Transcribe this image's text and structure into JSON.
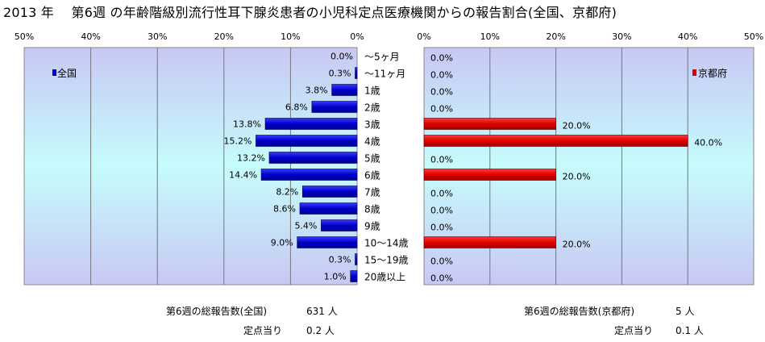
{
  "title": "2013 年　 第6週 の年齢階級別流行性耳下腺炎患者の小児科定点医療機関からの報告割合(全国、京都府)",
  "chart_data": [
    {
      "type": "bar",
      "orientation": "horizontal",
      "direction": "right-to-left",
      "series_name": "全国",
      "categories": [
        "～5ヶ月",
        "～11ヶ月",
        "1歳",
        "2歳",
        "3歳",
        "4歳",
        "5歳",
        "6歳",
        "7歳",
        "8歳",
        "9歳",
        "10～14歳",
        "15～19歳",
        "20歳以上"
      ],
      "values": [
        0.0,
        0.3,
        3.8,
        6.8,
        13.8,
        15.2,
        13.2,
        14.4,
        8.2,
        8.6,
        5.4,
        9.0,
        0.3,
        1.0
      ],
      "value_labels": [
        "0.0%",
        "0.3%",
        "3.8%",
        "6.8%",
        "13.8%",
        "15.2%",
        "13.2%",
        "14.4%",
        "8.2%",
        "8.6%",
        "5.4%",
        "9.0%",
        "0.3%",
        "1.0%"
      ],
      "xlim": [
        0,
        50
      ],
      "ticks": [
        "50%",
        "40%",
        "30%",
        "20%",
        "10%",
        "0%"
      ],
      "legend_position": "top-left",
      "color": "#0000cc"
    },
    {
      "type": "bar",
      "orientation": "horizontal",
      "series_name": "京都府",
      "categories": [
        "～5ヶ月",
        "～11ヶ月",
        "1歳",
        "2歳",
        "3歳",
        "4歳",
        "5歳",
        "6歳",
        "7歳",
        "8歳",
        "9歳",
        "10～14歳",
        "15～19歳",
        "20歳以上"
      ],
      "values": [
        0.0,
        0.0,
        0.0,
        0.0,
        20.0,
        40.0,
        0.0,
        20.0,
        0.0,
        0.0,
        0.0,
        20.0,
        0.0,
        0.0
      ],
      "value_labels": [
        "0.0%",
        "0.0%",
        "0.0%",
        "0.0%",
        "20.0%",
        "40.0%",
        "0.0%",
        "20.0%",
        "0.0%",
        "0.0%",
        "0.0%",
        "20.0%",
        "0.0%",
        "0.0%"
      ],
      "xlim": [
        0,
        50
      ],
      "ticks": [
        "0%",
        "10%",
        "20%",
        "30%",
        "40%",
        "50%"
      ],
      "legend_position": "top-right",
      "color": "#dd0000"
    }
  ],
  "footer": {
    "national_total_label": "第6週の総報告数(全国)",
    "national_total_value": "631 人",
    "national_per_label": "定点当り",
    "national_per_value": "0.2 人",
    "kyoto_total_label": "第6週の総報告数(京都府)",
    "kyoto_total_value": "5 人",
    "kyoto_per_label": "定点当り",
    "kyoto_per_value": "0.1 人"
  }
}
